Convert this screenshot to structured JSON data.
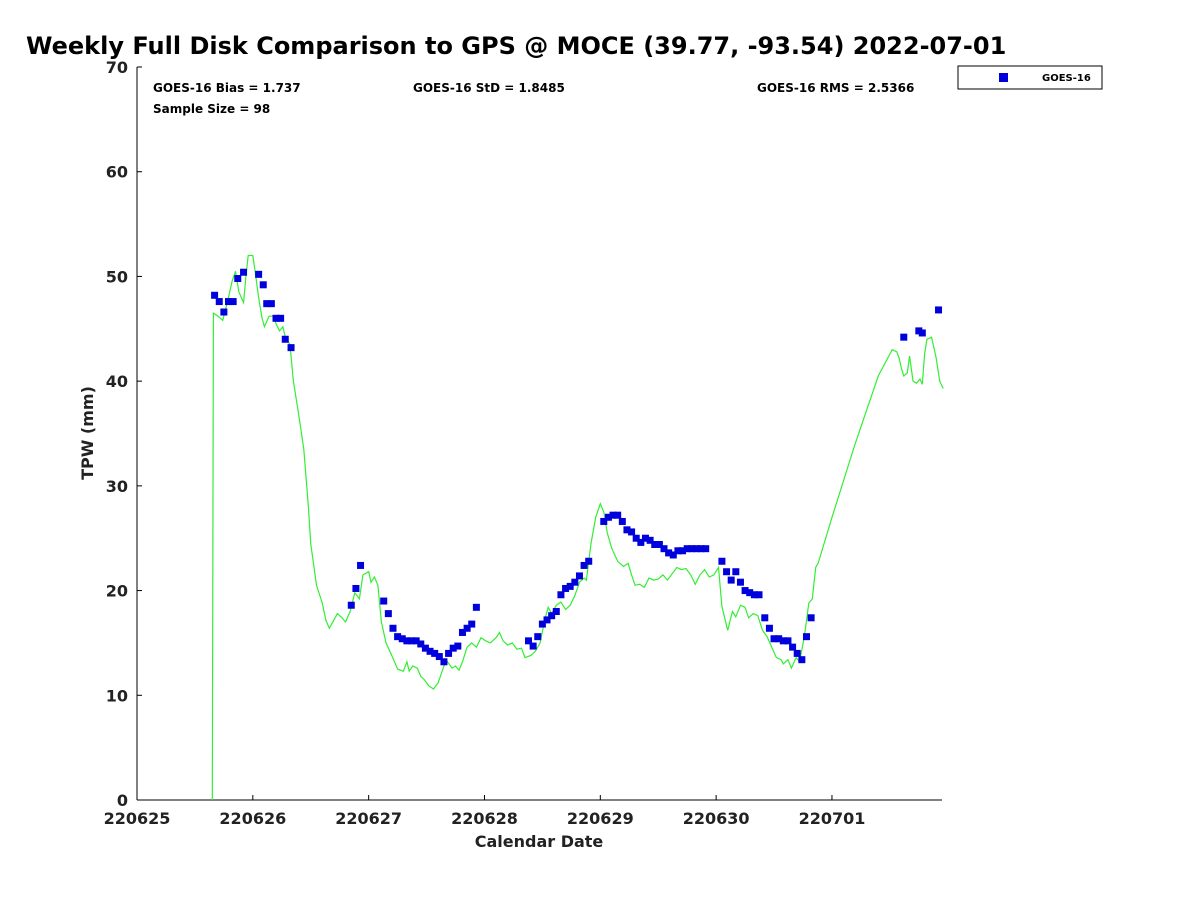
{
  "chart_data": {
    "type": "scatter",
    "title": "Weekly Full Disk Comparison to GPS @ MOCE (39.77, -93.54) 2022-07-01",
    "xlabel": "Calendar Date",
    "ylabel": "TPW (mm)",
    "xlim": [
      0,
      6.95
    ],
    "ylim": [
      0,
      70
    ],
    "x_ticks": [
      {
        "value": 0,
        "label": "220625"
      },
      {
        "value": 1,
        "label": "220626"
      },
      {
        "value": 2,
        "label": "220627"
      },
      {
        "value": 3,
        "label": "220628"
      },
      {
        "value": 4,
        "label": "220629"
      },
      {
        "value": 5,
        "label": "220630"
      },
      {
        "value": 6,
        "label": "220701"
      }
    ],
    "y_ticks": [
      0,
      10,
      20,
      30,
      40,
      50,
      60,
      70
    ],
    "stats": {
      "bias": "GOES-16 Bias = 1.737",
      "std": "GOES-16 StD = 1.8485",
      "rms": "GOES-16 RMS = 2.5366",
      "sample": "Sample Size = 98"
    },
    "legend": [
      {
        "label": "GOES-16",
        "color": "#0000dd",
        "marker": "square"
      }
    ],
    "series": [
      {
        "name": "GOES-16",
        "kind": "points",
        "color": "#0000dd",
        "points": [
          [
            0.67,
            48.2
          ],
          [
            0.71,
            47.6
          ],
          [
            0.75,
            46.6
          ],
          [
            0.79,
            47.6
          ],
          [
            0.83,
            47.6
          ],
          [
            0.87,
            49.8
          ],
          [
            0.92,
            50.4
          ],
          [
            1.05,
            50.2
          ],
          [
            1.09,
            49.2
          ],
          [
            1.12,
            47.4
          ],
          [
            1.16,
            47.4
          ],
          [
            1.2,
            46.0
          ],
          [
            1.24,
            46.0
          ],
          [
            1.28,
            44.0
          ],
          [
            1.33,
            43.2
          ],
          [
            1.85,
            18.6
          ],
          [
            1.89,
            20.2
          ],
          [
            1.93,
            22.4
          ],
          [
            2.13,
            19.0
          ],
          [
            2.17,
            17.8
          ],
          [
            2.21,
            16.4
          ],
          [
            2.25,
            15.6
          ],
          [
            2.29,
            15.4
          ],
          [
            2.33,
            15.2
          ],
          [
            2.37,
            15.2
          ],
          [
            2.41,
            15.2
          ],
          [
            2.45,
            14.9
          ],
          [
            2.49,
            14.5
          ],
          [
            2.53,
            14.2
          ],
          [
            2.57,
            14.0
          ],
          [
            2.61,
            13.7
          ],
          [
            2.65,
            13.2
          ],
          [
            2.69,
            14.0
          ],
          [
            2.73,
            14.5
          ],
          [
            2.77,
            14.7
          ],
          [
            2.81,
            16.0
          ],
          [
            2.85,
            16.4
          ],
          [
            2.89,
            16.8
          ],
          [
            2.93,
            18.4
          ],
          [
            3.38,
            15.2
          ],
          [
            3.42,
            14.7
          ],
          [
            3.46,
            15.6
          ],
          [
            3.5,
            16.8
          ],
          [
            3.54,
            17.2
          ],
          [
            3.58,
            17.6
          ],
          [
            3.62,
            18.0
          ],
          [
            3.66,
            19.6
          ],
          [
            3.7,
            20.2
          ],
          [
            3.74,
            20.4
          ],
          [
            3.78,
            20.8
          ],
          [
            3.82,
            21.4
          ],
          [
            3.86,
            22.4
          ],
          [
            3.9,
            22.8
          ],
          [
            4.03,
            26.6
          ],
          [
            4.07,
            27.0
          ],
          [
            4.11,
            27.2
          ],
          [
            4.15,
            27.2
          ],
          [
            4.19,
            26.6
          ],
          [
            4.23,
            25.8
          ],
          [
            4.27,
            25.6
          ],
          [
            4.31,
            25.0
          ],
          [
            4.35,
            24.6
          ],
          [
            4.39,
            25.0
          ],
          [
            4.43,
            24.8
          ],
          [
            4.47,
            24.4
          ],
          [
            4.51,
            24.4
          ],
          [
            4.55,
            24.0
          ],
          [
            4.59,
            23.6
          ],
          [
            4.63,
            23.4
          ],
          [
            4.67,
            23.8
          ],
          [
            4.71,
            23.8
          ],
          [
            4.75,
            24.0
          ],
          [
            4.79,
            24.0
          ],
          [
            4.83,
            24.0
          ],
          [
            4.87,
            24.0
          ],
          [
            4.91,
            24.0
          ],
          [
            5.05,
            22.8
          ],
          [
            5.09,
            21.8
          ],
          [
            5.13,
            21.0
          ],
          [
            5.17,
            21.8
          ],
          [
            5.21,
            20.8
          ],
          [
            5.25,
            20.0
          ],
          [
            5.29,
            19.8
          ],
          [
            5.33,
            19.6
          ],
          [
            5.37,
            19.6
          ],
          [
            5.42,
            17.4
          ],
          [
            5.46,
            16.4
          ],
          [
            5.5,
            15.4
          ],
          [
            5.54,
            15.4
          ],
          [
            5.58,
            15.2
          ],
          [
            5.62,
            15.2
          ],
          [
            5.66,
            14.6
          ],
          [
            5.7,
            14.0
          ],
          [
            5.74,
            13.4
          ],
          [
            5.78,
            15.6
          ],
          [
            5.82,
            17.4
          ],
          [
            6.62,
            44.2
          ],
          [
            6.75,
            44.8
          ],
          [
            6.78,
            44.6
          ],
          [
            6.92,
            46.8
          ]
        ]
      },
      {
        "name": "GPS",
        "kind": "line",
        "color": "#33ee33",
        "points": [
          [
            0.65,
            0
          ],
          [
            0.66,
            46.5
          ],
          [
            0.7,
            46.2
          ],
          [
            0.74,
            45.8
          ],
          [
            0.78,
            47.5
          ],
          [
            0.82,
            49.5
          ],
          [
            0.85,
            50.5
          ],
          [
            0.88,
            48.5
          ],
          [
            0.92,
            47.5
          ],
          [
            0.94,
            50.0
          ],
          [
            0.96,
            52.0
          ],
          [
            1.0,
            52.0
          ],
          [
            1.02,
            50.5
          ],
          [
            1.05,
            48.0
          ],
          [
            1.08,
            46.0
          ],
          [
            1.1,
            45.2
          ],
          [
            1.14,
            46.2
          ],
          [
            1.18,
            46.2
          ],
          [
            1.2,
            45.5
          ],
          [
            1.23,
            44.8
          ],
          [
            1.26,
            45.2
          ],
          [
            1.28,
            44.2
          ],
          [
            1.32,
            43.5
          ],
          [
            1.35,
            40.0
          ],
          [
            1.4,
            36.5
          ],
          [
            1.44,
            33.5
          ],
          [
            1.48,
            28.0
          ],
          [
            1.5,
            24.5
          ],
          [
            1.55,
            20.5
          ],
          [
            1.6,
            18.8
          ],
          [
            1.63,
            17.2
          ],
          [
            1.66,
            16.4
          ],
          [
            1.7,
            17.2
          ],
          [
            1.73,
            17.8
          ],
          [
            1.77,
            17.4
          ],
          [
            1.8,
            17.0
          ],
          [
            1.84,
            18.0
          ],
          [
            1.88,
            19.8
          ],
          [
            1.92,
            19.2
          ],
          [
            1.95,
            21.5
          ],
          [
            2.0,
            21.8
          ],
          [
            2.02,
            20.8
          ],
          [
            2.05,
            21.3
          ],
          [
            2.08,
            20.5
          ],
          [
            2.11,
            17.0
          ],
          [
            2.15,
            15.0
          ],
          [
            2.2,
            13.8
          ],
          [
            2.25,
            12.5
          ],
          [
            2.3,
            12.3
          ],
          [
            2.33,
            13.2
          ],
          [
            2.35,
            12.3
          ],
          [
            2.38,
            12.8
          ],
          [
            2.42,
            12.6
          ],
          [
            2.45,
            11.8
          ],
          [
            2.48,
            11.5
          ],
          [
            2.52,
            10.9
          ],
          [
            2.56,
            10.6
          ],
          [
            2.6,
            11.2
          ],
          [
            2.65,
            12.8
          ],
          [
            2.68,
            13.2
          ],
          [
            2.72,
            12.6
          ],
          [
            2.75,
            12.8
          ],
          [
            2.78,
            12.4
          ],
          [
            2.81,
            13.2
          ],
          [
            2.85,
            14.6
          ],
          [
            2.89,
            15.0
          ],
          [
            2.93,
            14.6
          ],
          [
            2.97,
            15.5
          ],
          [
            3.01,
            15.2
          ],
          [
            3.05,
            15.0
          ],
          [
            3.1,
            15.5
          ],
          [
            3.13,
            16.0
          ],
          [
            3.16,
            15.2
          ],
          [
            3.2,
            14.8
          ],
          [
            3.24,
            15.0
          ],
          [
            3.28,
            14.4
          ],
          [
            3.32,
            14.5
          ],
          [
            3.35,
            13.6
          ],
          [
            3.4,
            13.8
          ],
          [
            3.44,
            14.2
          ],
          [
            3.48,
            15.0
          ],
          [
            3.52,
            17.2
          ],
          [
            3.55,
            18.4
          ],
          [
            3.58,
            17.8
          ],
          [
            3.62,
            18.6
          ],
          [
            3.66,
            18.9
          ],
          [
            3.7,
            18.2
          ],
          [
            3.74,
            18.6
          ],
          [
            3.78,
            19.5
          ],
          [
            3.82,
            20.8
          ],
          [
            3.86,
            21.2
          ],
          [
            3.88,
            21.0
          ],
          [
            3.92,
            24.5
          ],
          [
            3.96,
            27.0
          ],
          [
            4.0,
            28.3
          ],
          [
            4.03,
            27.5
          ],
          [
            4.06,
            25.5
          ],
          [
            4.1,
            24.0
          ],
          [
            4.15,
            22.8
          ],
          [
            4.2,
            22.3
          ],
          [
            4.24,
            22.6
          ],
          [
            4.27,
            21.5
          ],
          [
            4.3,
            20.5
          ],
          [
            4.34,
            20.6
          ],
          [
            4.38,
            20.3
          ],
          [
            4.42,
            21.2
          ],
          [
            4.46,
            21.0
          ],
          [
            4.5,
            21.1
          ],
          [
            4.54,
            21.5
          ],
          [
            4.58,
            21.0
          ],
          [
            4.62,
            21.6
          ],
          [
            4.66,
            22.2
          ],
          [
            4.7,
            22.0
          ],
          [
            4.74,
            22.1
          ],
          [
            4.78,
            21.5
          ],
          [
            4.82,
            20.6
          ],
          [
            4.86,
            21.5
          ],
          [
            4.9,
            22.0
          ],
          [
            4.94,
            21.3
          ],
          [
            4.98,
            21.5
          ],
          [
            5.02,
            22.2
          ],
          [
            5.05,
            18.5
          ],
          [
            5.1,
            16.2
          ],
          [
            5.14,
            18.0
          ],
          [
            5.17,
            17.5
          ],
          [
            5.21,
            18.6
          ],
          [
            5.25,
            18.4
          ],
          [
            5.28,
            17.4
          ],
          [
            5.32,
            17.8
          ],
          [
            5.36,
            17.6
          ],
          [
            5.4,
            16.2
          ],
          [
            5.44,
            15.6
          ],
          [
            5.48,
            14.6
          ],
          [
            5.52,
            13.6
          ],
          [
            5.56,
            13.4
          ],
          [
            5.58,
            13.0
          ],
          [
            5.62,
            13.4
          ],
          [
            5.65,
            12.6
          ],
          [
            5.69,
            13.6
          ],
          [
            5.72,
            13.2
          ],
          [
            5.76,
            15.5
          ],
          [
            5.8,
            18.8
          ],
          [
            5.83,
            19.2
          ],
          [
            5.86,
            22.2
          ],
          [
            5.88,
            22.6
          ],
          [
            6.0,
            27.0
          ],
          [
            6.2,
            34.0
          ],
          [
            6.4,
            40.5
          ],
          [
            6.52,
            43.0
          ],
          [
            6.56,
            42.8
          ],
          [
            6.58,
            42.2
          ],
          [
            6.6,
            41.2
          ],
          [
            6.62,
            40.5
          ],
          [
            6.65,
            40.8
          ],
          [
            6.67,
            42.4
          ],
          [
            6.7,
            40.0
          ],
          [
            6.73,
            39.8
          ],
          [
            6.76,
            40.2
          ],
          [
            6.78,
            39.7
          ],
          [
            6.8,
            42.6
          ],
          [
            6.82,
            44.0
          ],
          [
            6.86,
            44.2
          ],
          [
            6.9,
            42.2
          ],
          [
            6.93,
            40.0
          ],
          [
            6.96,
            39.3
          ]
        ]
      }
    ]
  }
}
